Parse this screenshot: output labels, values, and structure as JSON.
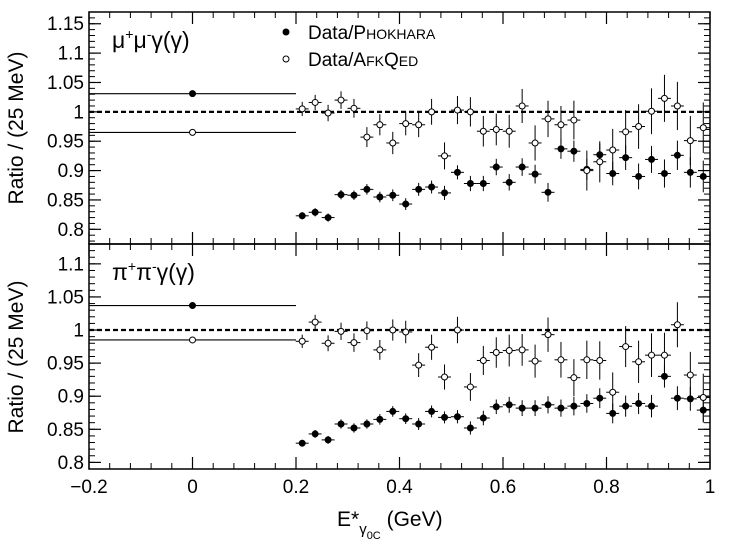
{
  "chart_data": [
    {
      "type": "scatter",
      "title": "μ⁺μ⁻γ(γ)",
      "title_base": "μ",
      "title_sup1": "+",
      "title_mid": "μ",
      "title_sup2": "-",
      "title_tail": "γ(γ)",
      "ylabel": "Ratio / (25 MeV)",
      "xlabel": "",
      "xlim": [
        -0.2,
        1.0
      ],
      "ylim": [
        0.775,
        1.17
      ],
      "yticks": [
        0.8,
        0.85,
        0.9,
        0.95,
        1.0,
        1.05,
        1.1,
        1.15
      ],
      "ytick_labels": [
        "0.8",
        "0.85",
        "0.9",
        "0.95",
        "1",
        "1.05",
        "1.1",
        "1.15"
      ],
      "reference_line": 1.0,
      "legend": [
        {
          "marker": "filled",
          "label_lead": "Data/P",
          "label_small": "HOKHARA",
          "label": "Data/PHOKHARA"
        },
        {
          "marker": "open",
          "label_lead": "Data/A",
          "label_small": "FK",
          "label_lead2": "Q",
          "label_small2": "ED",
          "label": "Data/AFKQED"
        }
      ],
      "series": [
        {
          "name": "Data/PHOKHARA",
          "marker": "filled",
          "summary_point": {
            "x": 0.0,
            "y": 1.031,
            "xerr": 0.2
          },
          "x": [
            0.212,
            0.237,
            0.262,
            0.287,
            0.312,
            0.337,
            0.362,
            0.387,
            0.412,
            0.437,
            0.462,
            0.487,
            0.512,
            0.537,
            0.562,
            0.587,
            0.612,
            0.637,
            0.662,
            0.687,
            0.712,
            0.737,
            0.762,
            0.787,
            0.812,
            0.837,
            0.862,
            0.887,
            0.912,
            0.937,
            0.962,
            0.987
          ],
          "y": [
            0.823,
            0.829,
            0.82,
            0.859,
            0.858,
            0.868,
            0.855,
            0.858,
            0.843,
            0.868,
            0.872,
            0.862,
            0.897,
            0.878,
            0.878,
            0.906,
            0.88,
            0.906,
            0.894,
            0.863,
            0.937,
            0.933,
            0.902,
            0.927,
            0.895,
            0.922,
            0.89,
            0.919,
            0.895,
            0.926,
            0.897,
            0.89
          ],
          "yerr": [
            0.006,
            0.007,
            0.007,
            0.008,
            0.008,
            0.009,
            0.009,
            0.01,
            0.01,
            0.011,
            0.011,
            0.012,
            0.012,
            0.013,
            0.013,
            0.014,
            0.014,
            0.015,
            0.016,
            0.016,
            0.017,
            0.018,
            0.018,
            0.019,
            0.02,
            0.021,
            0.022,
            0.023,
            0.024,
            0.025,
            0.026,
            0.027
          ]
        },
        {
          "name": "Data/AFKQED",
          "marker": "open",
          "summary_point": {
            "x": 0.0,
            "y": 0.965,
            "xerr": 0.2
          },
          "x": [
            0.212,
            0.237,
            0.262,
            0.287,
            0.312,
            0.337,
            0.362,
            0.387,
            0.412,
            0.437,
            0.462,
            0.487,
            0.512,
            0.537,
            0.562,
            0.587,
            0.612,
            0.637,
            0.662,
            0.687,
            0.712,
            0.737,
            0.762,
            0.787,
            0.812,
            0.837,
            0.862,
            0.887,
            0.912,
            0.937,
            0.962,
            0.987
          ],
          "y": [
            1.005,
            1.016,
            0.998,
            1.02,
            1.006,
            0.957,
            0.978,
            0.947,
            0.98,
            0.978,
            1.0,
            0.925,
            1.003,
            1.0,
            0.967,
            0.97,
            0.967,
            1.01,
            0.947,
            0.988,
            0.978,
            0.986,
            0.9,
            0.915,
            0.935,
            0.966,
            0.975,
            1.001,
            1.023,
            1.01,
            0.951,
            0.973
          ],
          "yerr": [
            0.012,
            0.013,
            0.014,
            0.015,
            0.016,
            0.017,
            0.018,
            0.019,
            0.02,
            0.021,
            0.022,
            0.023,
            0.024,
            0.025,
            0.026,
            0.027,
            0.028,
            0.029,
            0.03,
            0.031,
            0.032,
            0.033,
            0.034,
            0.035,
            0.036,
            0.037,
            0.038,
            0.039,
            0.04,
            0.041,
            0.042,
            0.043
          ]
        }
      ]
    },
    {
      "type": "scatter",
      "title": "π⁺π⁻γ(γ)",
      "title_base": "π",
      "title_sup1": "+",
      "title_mid": "π",
      "title_sup2": "-",
      "title_tail": "γ(γ)",
      "ylabel": "Ratio / (25 MeV)",
      "xlabel": "E*γ0C (GeV)",
      "xlabel_base": "E*",
      "xlabel_sub": "γ",
      "xlabel_subsub": "0C",
      "xlabel_tail": " (GeV)",
      "xlim": [
        -0.2,
        1.0
      ],
      "ylim": [
        0.79,
        1.13
      ],
      "xticks": [
        -0.2,
        0.0,
        0.2,
        0.4,
        0.6,
        0.8,
        1.0
      ],
      "xtick_labels": [
        "−0.2",
        "0",
        "0.2",
        "0.4",
        "0.6",
        "0.8",
        "1"
      ],
      "yticks": [
        0.8,
        0.85,
        0.9,
        0.95,
        1.0,
        1.05,
        1.1
      ],
      "ytick_labels": [
        "0.8",
        "0.85",
        "0.9",
        "0.95",
        "1",
        "1.05",
        "1.1"
      ],
      "reference_line": 1.0,
      "series": [
        {
          "name": "Data/PHOKHARA",
          "marker": "filled",
          "summary_point": {
            "x": 0.0,
            "y": 1.037,
            "xerr": 0.2
          },
          "x": [
            0.212,
            0.237,
            0.262,
            0.287,
            0.312,
            0.337,
            0.362,
            0.387,
            0.412,
            0.437,
            0.462,
            0.487,
            0.512,
            0.537,
            0.562,
            0.587,
            0.612,
            0.637,
            0.662,
            0.687,
            0.712,
            0.737,
            0.762,
            0.787,
            0.812,
            0.837,
            0.862,
            0.887,
            0.912,
            0.937,
            0.962,
            0.987
          ],
          "y": [
            0.829,
            0.843,
            0.834,
            0.858,
            0.852,
            0.858,
            0.865,
            0.877,
            0.866,
            0.858,
            0.877,
            0.868,
            0.869,
            0.852,
            0.867,
            0.884,
            0.887,
            0.882,
            0.882,
            0.887,
            0.882,
            0.885,
            0.889,
            0.897,
            0.874,
            0.885,
            0.889,
            0.885,
            0.93,
            0.897,
            0.896,
            0.879
          ],
          "yerr": [
            0.005,
            0.006,
            0.006,
            0.007,
            0.007,
            0.007,
            0.008,
            0.008,
            0.008,
            0.009,
            0.009,
            0.009,
            0.01,
            0.01,
            0.011,
            0.011,
            0.012,
            0.012,
            0.012,
            0.013,
            0.013,
            0.014,
            0.014,
            0.015,
            0.015,
            0.016,
            0.016,
            0.017,
            0.017,
            0.018,
            0.018,
            0.019
          ]
        },
        {
          "name": "Data/AFKQED",
          "marker": "open",
          "summary_point": {
            "x": 0.0,
            "y": 0.985,
            "xerr": 0.2
          },
          "x": [
            0.212,
            0.237,
            0.262,
            0.287,
            0.312,
            0.337,
            0.362,
            0.387,
            0.412,
            0.437,
            0.462,
            0.487,
            0.512,
            0.537,
            0.562,
            0.587,
            0.612,
            0.637,
            0.662,
            0.687,
            0.712,
            0.737,
            0.762,
            0.787,
            0.812,
            0.837,
            0.862,
            0.887,
            0.912,
            0.937,
            0.962,
            0.987
          ],
          "y": [
            0.983,
            1.012,
            0.98,
            0.998,
            0.981,
            0.999,
            0.97,
            1.0,
            0.997,
            0.947,
            0.974,
            0.929,
            1.0,
            0.914,
            0.954,
            0.966,
            0.969,
            0.97,
            0.953,
            0.993,
            0.955,
            0.928,
            0.955,
            0.954,
            0.906,
            0.975,
            0.952,
            0.962,
            0.962,
            1.008,
            0.932,
            0.898
          ],
          "yerr": [
            0.01,
            0.011,
            0.012,
            0.013,
            0.014,
            0.014,
            0.015,
            0.016,
            0.017,
            0.018,
            0.019,
            0.019,
            0.02,
            0.021,
            0.022,
            0.023,
            0.024,
            0.024,
            0.025,
            0.026,
            0.027,
            0.028,
            0.029,
            0.029,
            0.03,
            0.031,
            0.032,
            0.033,
            0.034,
            0.034,
            0.035,
            0.036
          ]
        }
      ]
    }
  ]
}
